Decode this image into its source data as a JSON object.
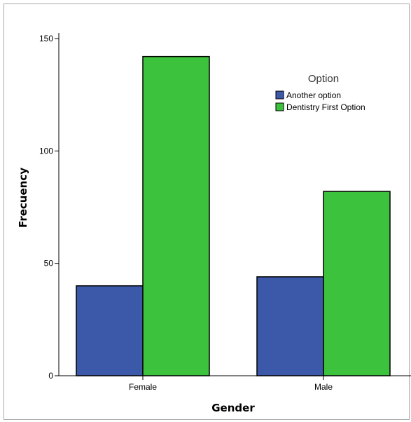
{
  "chart_data": {
    "type": "bar",
    "categories": [
      "Female",
      "Male"
    ],
    "series": [
      {
        "name": "Another option",
        "values": [
          40,
          44
        ],
        "color": "#3c58a8"
      },
      {
        "name": "Dentistry First Option",
        "values": [
          142,
          82
        ],
        "color": "#3cc23c"
      }
    ],
    "xlabel": "Gender",
    "ylabel": "Frecuency",
    "ylim": [
      0,
      150
    ],
    "yticks": [
      0,
      50,
      100,
      150
    ],
    "legend": {
      "title": "Option",
      "position": "top-right"
    },
    "grid": false
  }
}
